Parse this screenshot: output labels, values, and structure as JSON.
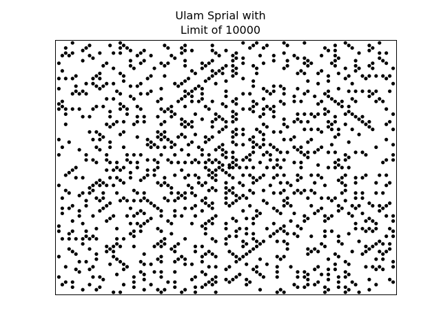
{
  "chart_data": {
    "type": "scatter",
    "title_lines": [
      "Ulam Sprial with",
      "Limit of 10000"
    ],
    "limit": 10000,
    "series_description": "prime numbers up to the limit plotted on an Ulam spiral",
    "marker_color": "#000000",
    "axes_visible": false,
    "ticks_visible": false,
    "grid": false,
    "xlim": [
      -50,
      50
    ],
    "ylim": [
      -50,
      50
    ]
  }
}
